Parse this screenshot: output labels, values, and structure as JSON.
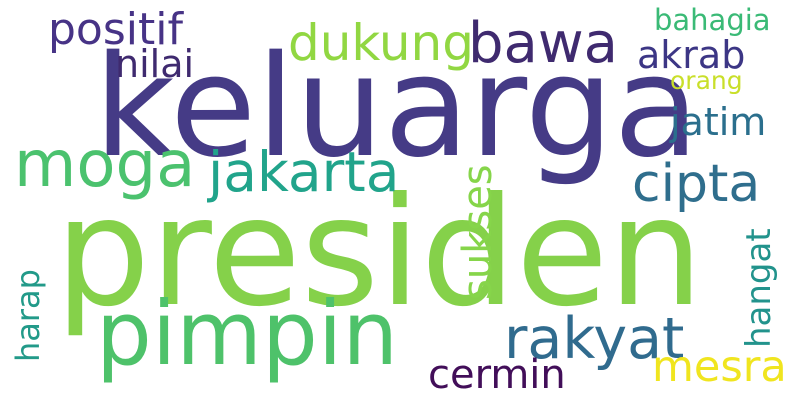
{
  "words": {
    "keluarga": {
      "text": "keluarga",
      "color": "#453b86"
    },
    "presiden": {
      "text": "presiden",
      "color": "#85d14a"
    },
    "pimpin": {
      "text": "pimpin",
      "color": "#4ec26a"
    },
    "positif": {
      "text": "positif",
      "color": "#473386"
    },
    "nilai": {
      "text": "nilai",
      "color": "#3f2a6f"
    },
    "dukung": {
      "text": "dukung",
      "color": "#91d742"
    },
    "bawa": {
      "text": "bawa",
      "color": "#3f2a6f"
    },
    "akrab": {
      "text": "akrab",
      "color": "#3c3685"
    },
    "bahagia": {
      "text": "bahagia",
      "color": "#3aba76"
    },
    "orang": {
      "text": "orang",
      "color": "#c9df2a"
    },
    "jatim": {
      "text": "jatim",
      "color": "#2b6f8d"
    },
    "moga": {
      "text": "moga",
      "color": "#4bc26e"
    },
    "jakarta": {
      "text": "jakarta",
      "color": "#21a48b"
    },
    "cipta": {
      "text": "cipta",
      "color": "#2f6e8d"
    },
    "rakyat": {
      "text": "rakyat",
      "color": "#306b8e"
    },
    "cermin": {
      "text": "cermin",
      "color": "#420e59"
    },
    "mesra": {
      "text": "mesra",
      "color": "#f0e51f"
    },
    "sukses": {
      "text": "sukses",
      "color": "#86d54a"
    },
    "hangat": {
      "text": "hangat",
      "color": "#22938c"
    },
    "harap": {
      "text": "harap",
      "color": "#229a89"
    }
  }
}
